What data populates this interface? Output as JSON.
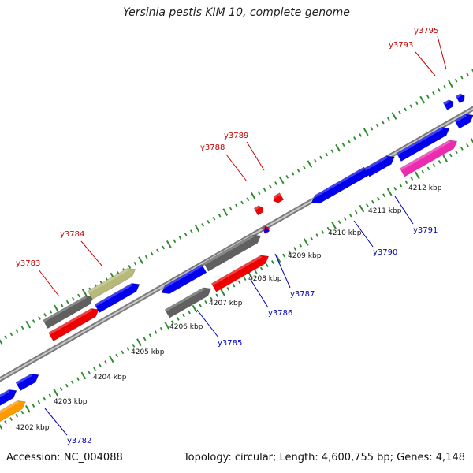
{
  "header": {
    "title": "Yersinia pestis KIM 10, complete genome"
  },
  "footer": {
    "accession": "Accession: NC_004088",
    "summary": "Topology: circular; Length: 4,600,755 bp; Genes: 4,148"
  },
  "colors": {
    "backbone": "#8a8a8a",
    "tick": "#2e8b2e",
    "label_top": "#cc0000",
    "label_bottom": "#0000bb",
    "blue": "#0000ee",
    "red": "#ee0000",
    "gray": "#606060",
    "khaki": "#b8b878",
    "magenta": "#ee2ab0",
    "orange": "#ff9900"
  },
  "scale_labels": [
    "4202 kbp",
    "4203 kbp",
    "4204 kbp",
    "4205 kbp",
    "4206 kbp",
    "4207 kbp",
    "4208 kbp",
    "4209 kbp",
    "4210 kbp",
    "4211 kbp",
    "4212 kbp"
  ],
  "top_labels": [
    "y3783",
    "y3784",
    "y3788",
    "y3789",
    "y3793",
    "y3795"
  ],
  "bottom_labels": [
    "y3782",
    "y3785",
    "y3786",
    "y3787",
    "y3790",
    "y3791"
  ],
  "features": [
    {
      "color": "blue"
    },
    {
      "color": "blue"
    },
    {
      "color": "orange"
    },
    {
      "color": "gray"
    },
    {
      "color": "khaki"
    },
    {
      "color": "red"
    },
    {
      "color": "blue"
    },
    {
      "color": "blue"
    },
    {
      "color": "gray"
    },
    {
      "color": "gray"
    },
    {
      "color": "red"
    },
    {
      "color": "red"
    },
    {
      "color": "blue"
    },
    {
      "color": "blue"
    },
    {
      "color": "blue"
    },
    {
      "color": "magenta"
    },
    {
      "color": "blue"
    },
    {
      "color": "red"
    },
    {
      "color": "red"
    },
    {
      "color": "blue"
    }
  ]
}
